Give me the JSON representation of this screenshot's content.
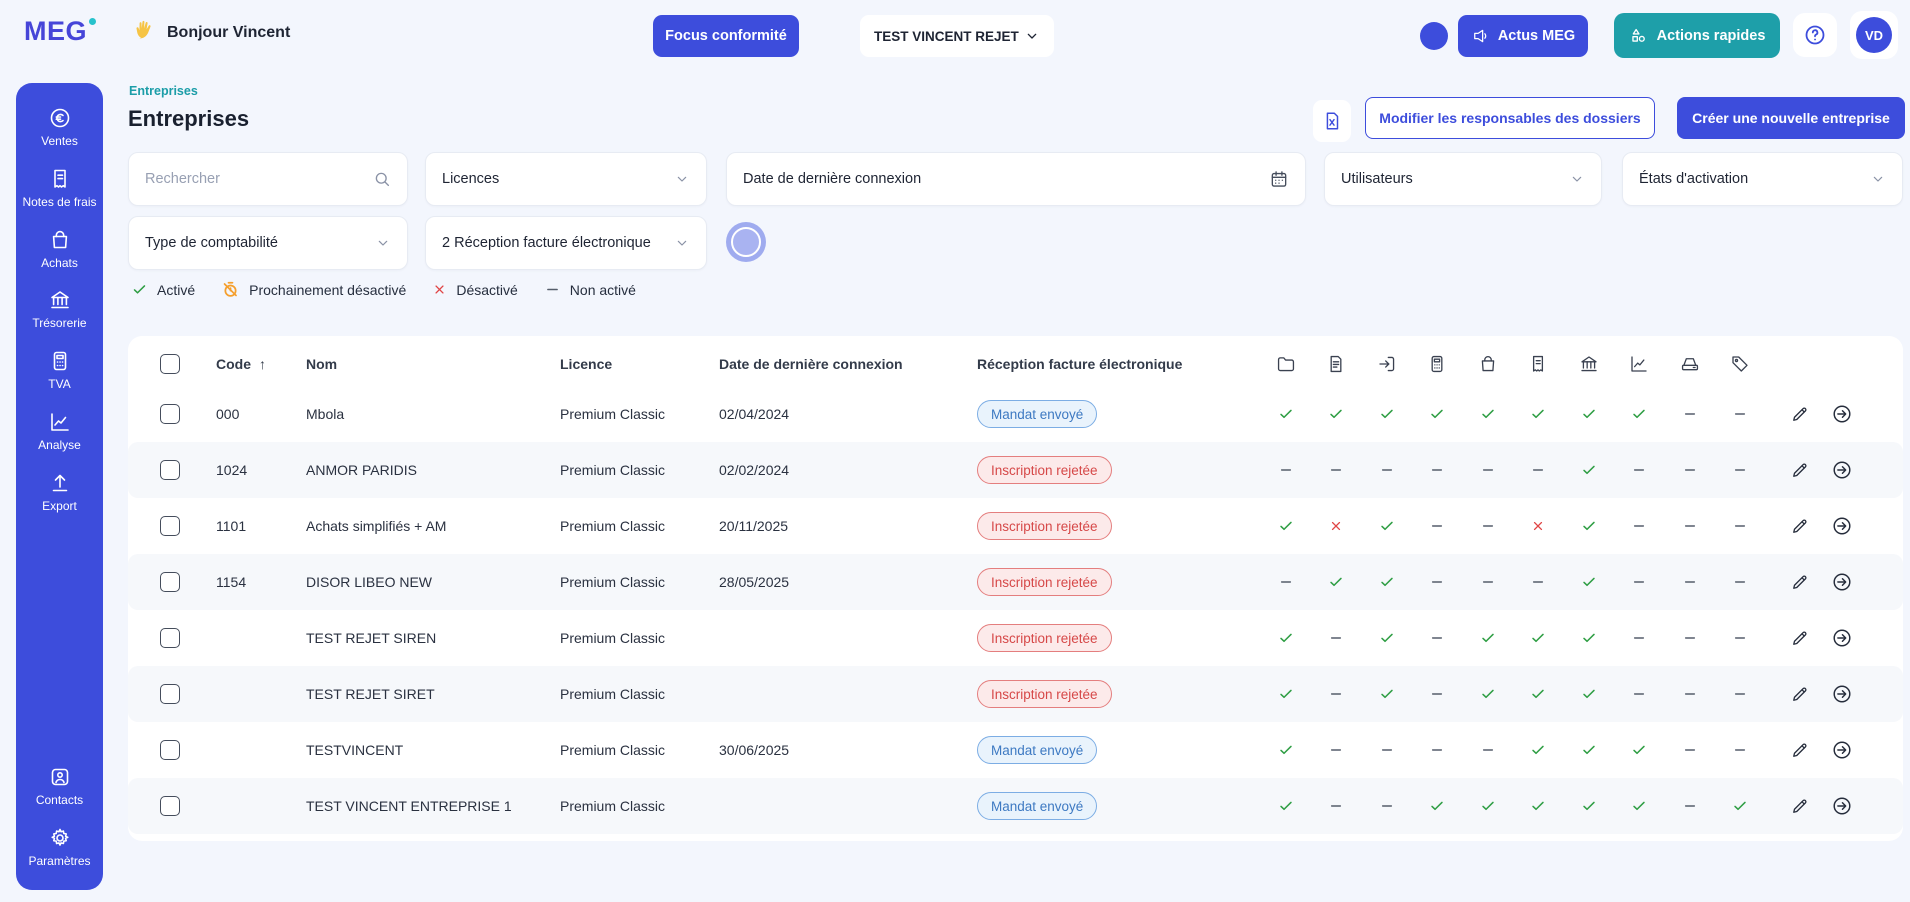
{
  "header": {
    "logo_text": "MEG",
    "greeting": "Bonjour Vincent",
    "focus_button": "Focus conformité",
    "company_selector": "TEST VINCENT REJET",
    "actus_button": "Actus MEG",
    "quick_actions_button": "Actions rapides",
    "avatar_initials": "VD"
  },
  "sidebar": {
    "items": [
      {
        "slug": "ventes",
        "icon": "euro",
        "label": "Ventes"
      },
      {
        "slug": "notes-de-frais",
        "icon": "receipt",
        "label": "Notes de frais"
      },
      {
        "slug": "achats",
        "icon": "bag",
        "label": "Achats"
      },
      {
        "slug": "tresorerie",
        "icon": "bank",
        "label": "Trésorerie"
      },
      {
        "slug": "tva",
        "icon": "calculator",
        "label": "TVA"
      },
      {
        "slug": "analyse",
        "icon": "chart",
        "label": "Analyse"
      },
      {
        "slug": "export",
        "icon": "upload",
        "label": "Export"
      }
    ],
    "bottom_items": [
      {
        "slug": "contacts",
        "icon": "contact",
        "label": "Contacts"
      },
      {
        "slug": "parametres",
        "icon": "gear",
        "label": "Paramètres"
      }
    ]
  },
  "page": {
    "breadcrumb": "Entreprises",
    "title": "Entreprises",
    "modify_owners_button": "Modifier les responsables des dossiers",
    "create_company_button": "Créer une nouvelle entreprise"
  },
  "filters": {
    "search_placeholder": "Rechercher",
    "licences_label": "Licences",
    "last_login_label": "Date de dernière connexion",
    "users_label": "Utilisateurs",
    "activation_states_label": "États d'activation",
    "accounting_type_label": "Type de comptabilité",
    "einvoice_label": "2 Réception facture électronique"
  },
  "legend": {
    "items": [
      {
        "type": "check",
        "label": "Activé"
      },
      {
        "type": "timer",
        "label": "Prochainement désactivé"
      },
      {
        "type": "cross",
        "label": "Désactivé"
      },
      {
        "type": "dash",
        "label": "Non activé"
      }
    ]
  },
  "table": {
    "columns": {
      "code": "Code",
      "name": "Nom",
      "licence": "Licence",
      "last_login": "Date de dernière connexion",
      "einvoice": "Réception facture électronique"
    },
    "icon_columns": [
      "folder",
      "invoice",
      "portal",
      "calculator",
      "bag",
      "receipt",
      "bank",
      "chart",
      "scanner",
      "tag"
    ],
    "rows": [
      {
        "code": "000",
        "name": "Mbola",
        "licence": "Premium Classic",
        "last_login": "02/04/2024",
        "badge": "Mandat envoyé",
        "badge_type": "blue",
        "status": [
          "check",
          "check",
          "check",
          "check",
          "check",
          "check",
          "check",
          "check",
          "dash",
          "dash"
        ]
      },
      {
        "code": "1024",
        "name": "ANMOR PARIDIS",
        "licence": "Premium Classic",
        "last_login": "02/02/2024",
        "badge": "Inscription rejetée",
        "badge_type": "red",
        "status": [
          "dash",
          "dash",
          "dash",
          "dash",
          "dash",
          "dash",
          "check",
          "dash",
          "dash",
          "dash"
        ]
      },
      {
        "code": "1101",
        "name": "Achats simplifiés + AM",
        "licence": "Premium Classic",
        "last_login": "20/11/2025",
        "badge": "Inscription rejetée",
        "badge_type": "red",
        "status": [
          "check",
          "cross",
          "check",
          "dash",
          "dash",
          "cross",
          "check",
          "dash",
          "dash",
          "dash"
        ]
      },
      {
        "code": "1154",
        "name": "DISOR LIBEO NEW",
        "licence": "Premium Classic",
        "last_login": "28/05/2025",
        "badge": "Inscription rejetée",
        "badge_type": "red",
        "status": [
          "dash",
          "check",
          "check",
          "dash",
          "dash",
          "dash",
          "check",
          "dash",
          "dash",
          "dash"
        ]
      },
      {
        "code": "",
        "name": "TEST REJET SIREN",
        "licence": "Premium Classic",
        "last_login": "",
        "badge": "Inscription rejetée",
        "badge_type": "red",
        "status": [
          "check",
          "dash",
          "check",
          "dash",
          "check",
          "check",
          "check",
          "dash",
          "dash",
          "dash"
        ]
      },
      {
        "code": "",
        "name": "TEST REJET SIRET",
        "licence": "Premium Classic",
        "last_login": "",
        "badge": "Inscription rejetée",
        "badge_type": "red",
        "status": [
          "check",
          "dash",
          "check",
          "dash",
          "check",
          "check",
          "check",
          "dash",
          "dash",
          "dash"
        ]
      },
      {
        "code": "",
        "name": "TESTVINCENT",
        "licence": "Premium Classic",
        "last_login": "30/06/2025",
        "badge": "Mandat envoyé",
        "badge_type": "blue",
        "status": [
          "check",
          "dash",
          "dash",
          "dash",
          "dash",
          "check",
          "check",
          "check",
          "dash",
          "dash"
        ]
      },
      {
        "code": "",
        "name": "TEST VINCENT ENTREPRISE 1",
        "licence": "Premium Classic",
        "last_login": "",
        "badge": "Mandat envoyé",
        "badge_type": "blue",
        "status": [
          "check",
          "dash",
          "dash",
          "check",
          "check",
          "check",
          "check",
          "check",
          "dash",
          "check"
        ]
      }
    ]
  },
  "colors": {
    "primary": "#3D4DDC",
    "teal": "#1E9FA9",
    "green": "#2F9E44",
    "red": "#E04545",
    "orange": "#F59F2D",
    "badge_blue_text": "#3D79C2",
    "badge_red_text": "#D64848"
  }
}
